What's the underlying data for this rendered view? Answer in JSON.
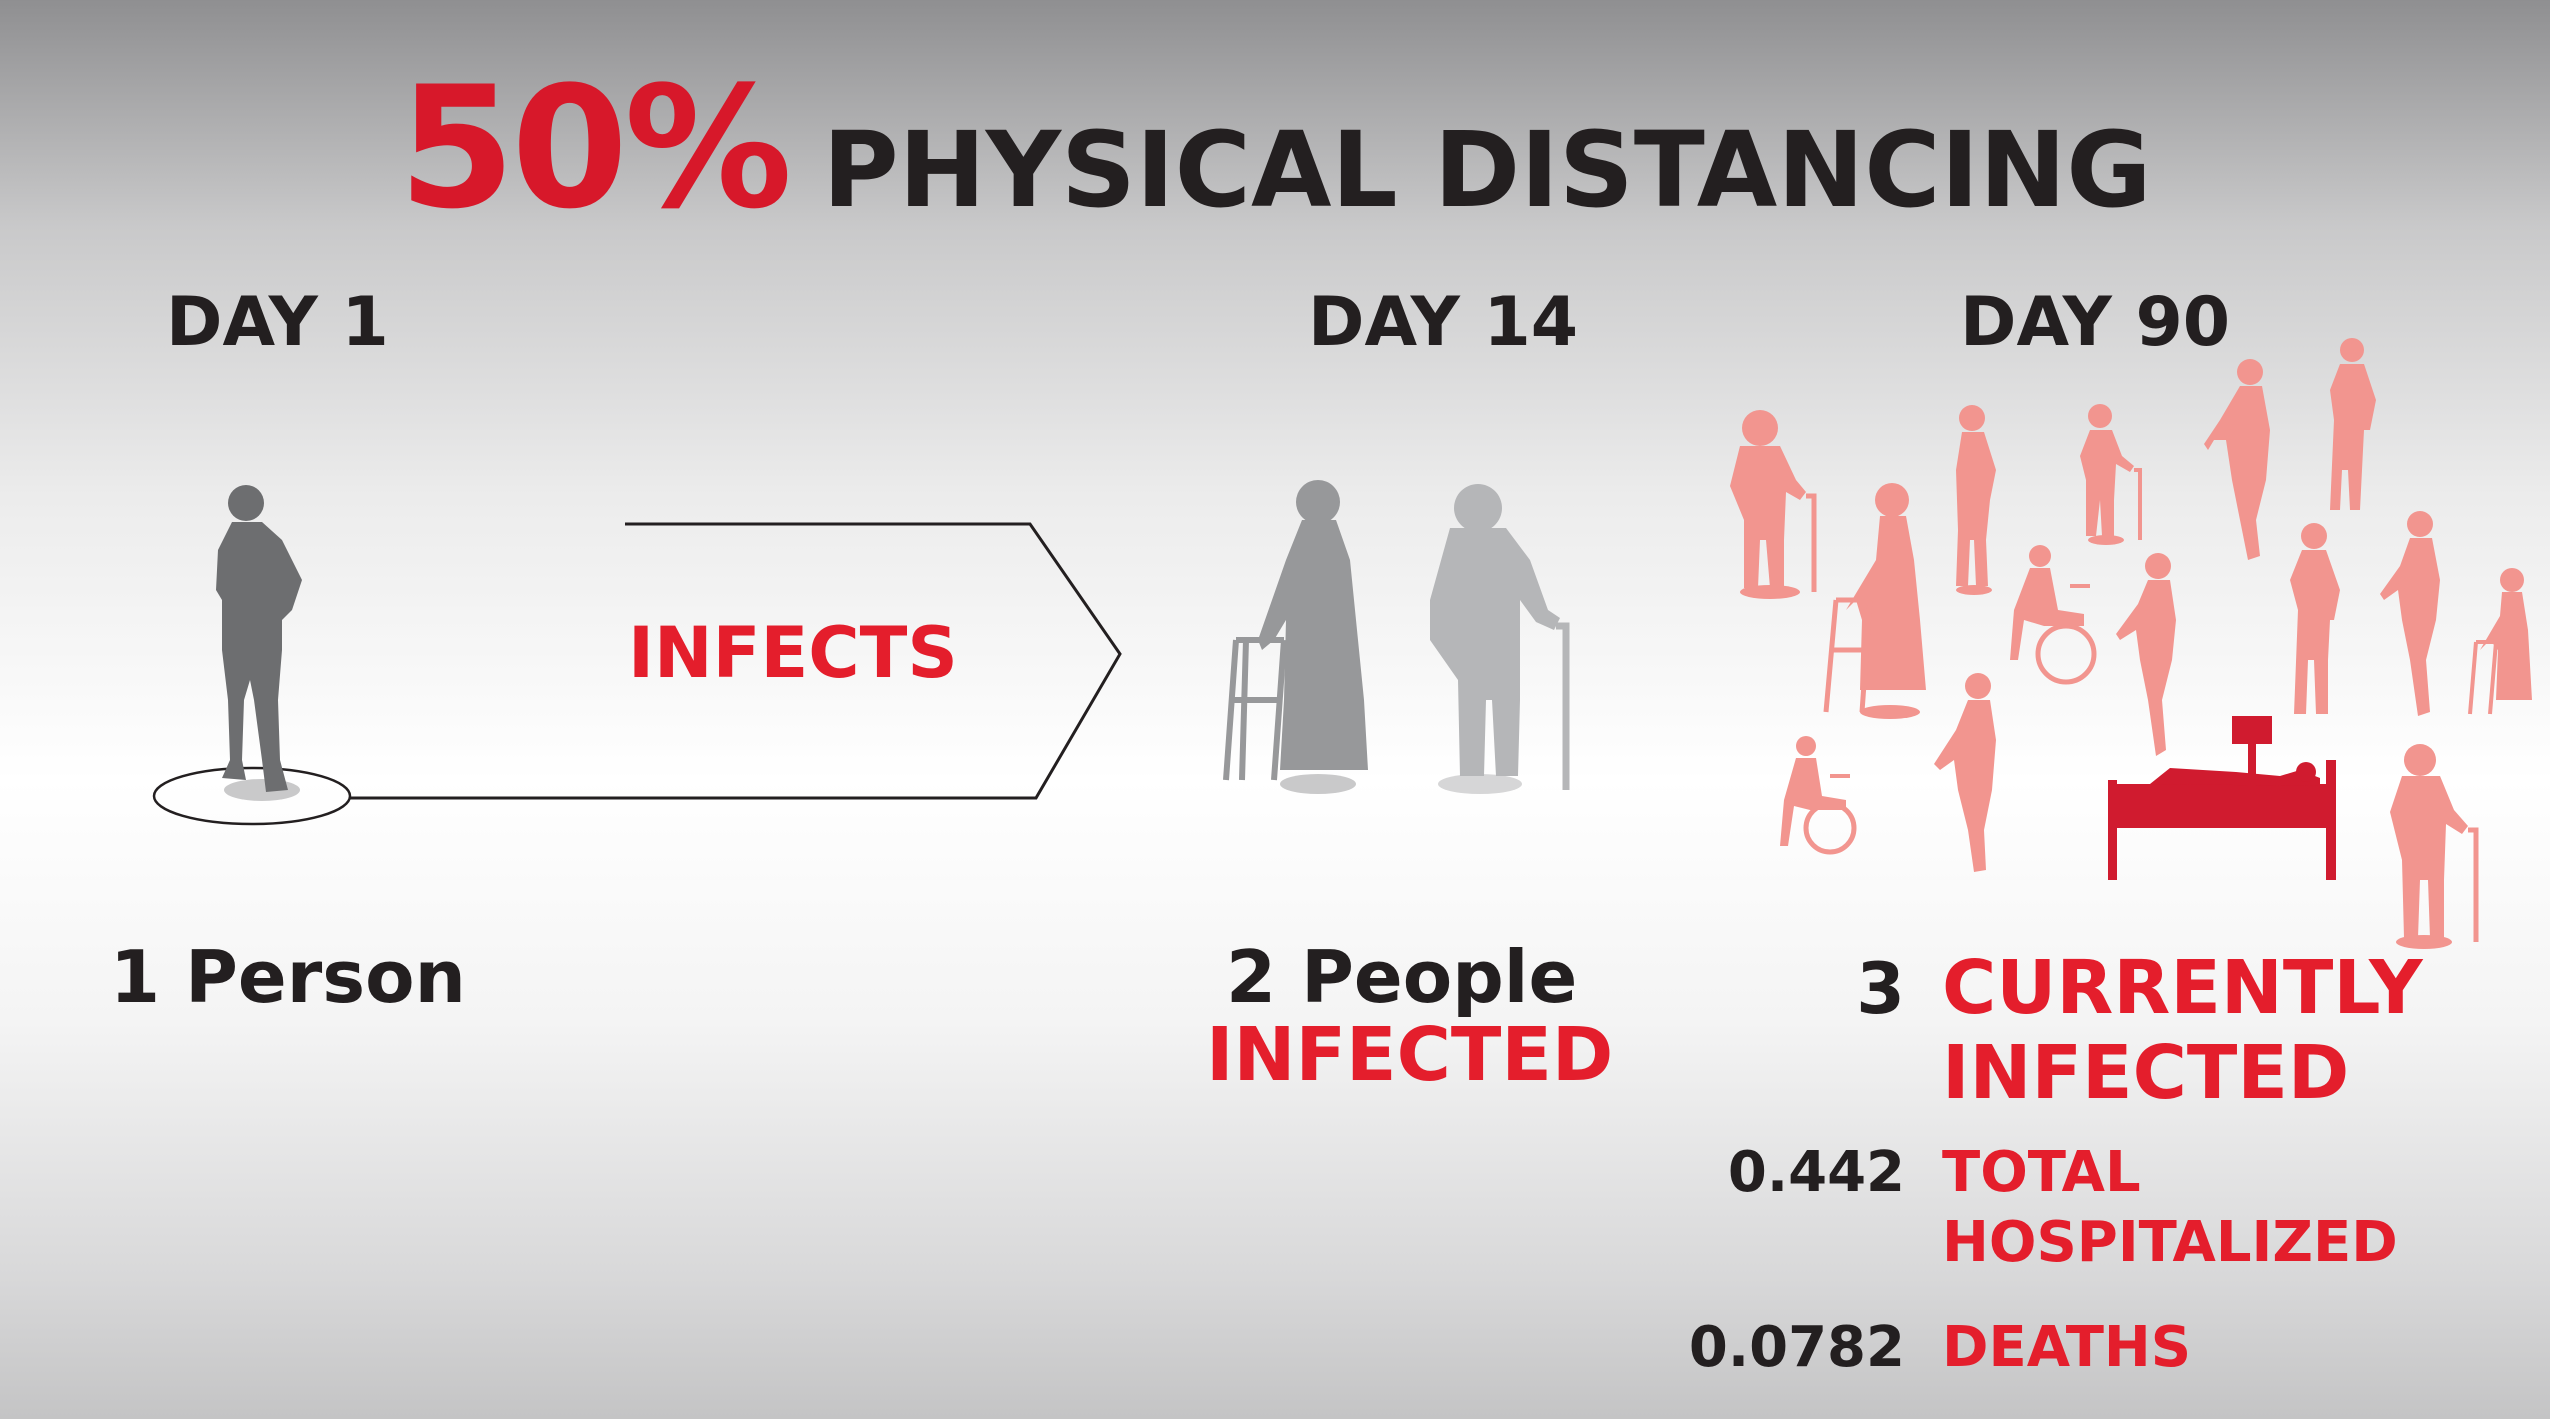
{
  "title": {
    "percent": "50%",
    "text": "PHYSICAL DISTANCING"
  },
  "days": {
    "day1": "DAY 1",
    "day14": "DAY 14",
    "day90": "DAY 90"
  },
  "arrow": {
    "label": "INFECTS"
  },
  "day1": {
    "count_text": "1 Person"
  },
  "day14": {
    "count_text": "2 People",
    "status": "INFECTED"
  },
  "day90": {
    "current": {
      "value": "3",
      "label_line1": "CURRENTLY",
      "label_line2": "INFECTED"
    },
    "hospitalized": {
      "value": "0.442",
      "label_line1": "TOTAL",
      "label_line2": "HOSPITALIZED"
    },
    "deaths": {
      "value": "0.0782",
      "label": "DEATHS"
    }
  },
  "colors": {
    "accent_red": "#e41e2c",
    "dark_text": "#231f20",
    "figure_dark": "#6d6e70",
    "figure_gray": "#a6a7a9",
    "figure_pink": "#f2958f",
    "bed_red": "#d01b2f"
  },
  "icons": [
    "standing-man-icon",
    "woman-with-walker-icon",
    "man-with-cane-icon",
    "crowd-icon",
    "wheelchair-icon",
    "hospital-bed-icon"
  ]
}
